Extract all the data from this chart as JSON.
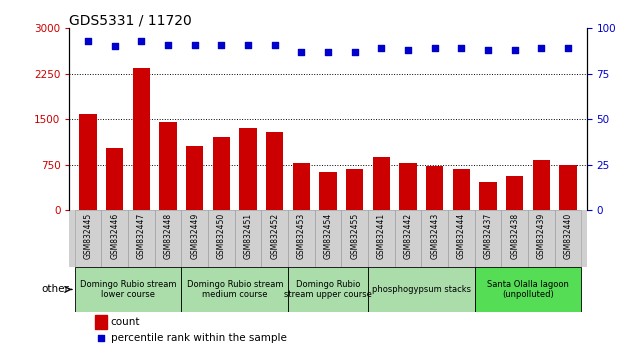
{
  "title": "GDS5331 / 11720",
  "samples": [
    "GSM832445",
    "GSM832446",
    "GSM832447",
    "GSM832448",
    "GSM832449",
    "GSM832450",
    "GSM832451",
    "GSM832452",
    "GSM832453",
    "GSM832454",
    "GSM832455",
    "GSM832441",
    "GSM832442",
    "GSM832443",
    "GSM832444",
    "GSM832437",
    "GSM832438",
    "GSM832439",
    "GSM832440"
  ],
  "counts": [
    1580,
    1020,
    2350,
    1450,
    1050,
    1200,
    1350,
    1280,
    780,
    620,
    680,
    870,
    780,
    730,
    680,
    460,
    560,
    830,
    740
  ],
  "percentiles": [
    93,
    90,
    93,
    91,
    91,
    91,
    91,
    91,
    87,
    87,
    87,
    89,
    88,
    89,
    89,
    88,
    88,
    89,
    89
  ],
  "bar_color": "#cc0000",
  "dot_color": "#0000cc",
  "ylim_left": [
    0,
    3000
  ],
  "ylim_right": [
    0,
    100
  ],
  "yticks_left": [
    0,
    750,
    1500,
    2250,
    3000
  ],
  "yticks_right": [
    0,
    25,
    50,
    75,
    100
  ],
  "groups": [
    {
      "label": "Domingo Rubio stream\nlower course",
      "start": 0,
      "end": 3,
      "color": "#aaddaa"
    },
    {
      "label": "Domingo Rubio stream\nmedium course",
      "start": 4,
      "end": 7,
      "color": "#aaddaa"
    },
    {
      "label": "Domingo Rubio\nstream upper course",
      "start": 8,
      "end": 10,
      "color": "#aaddaa"
    },
    {
      "label": "phosphogypsum stacks",
      "start": 11,
      "end": 14,
      "color": "#aaddaa"
    },
    {
      "label": "Santa Olalla lagoon\n(unpolluted)",
      "start": 15,
      "end": 18,
      "color": "#55dd55"
    }
  ],
  "other_label": "other",
  "legend_count_label": "count",
  "legend_pct_label": "percentile rank within the sample"
}
